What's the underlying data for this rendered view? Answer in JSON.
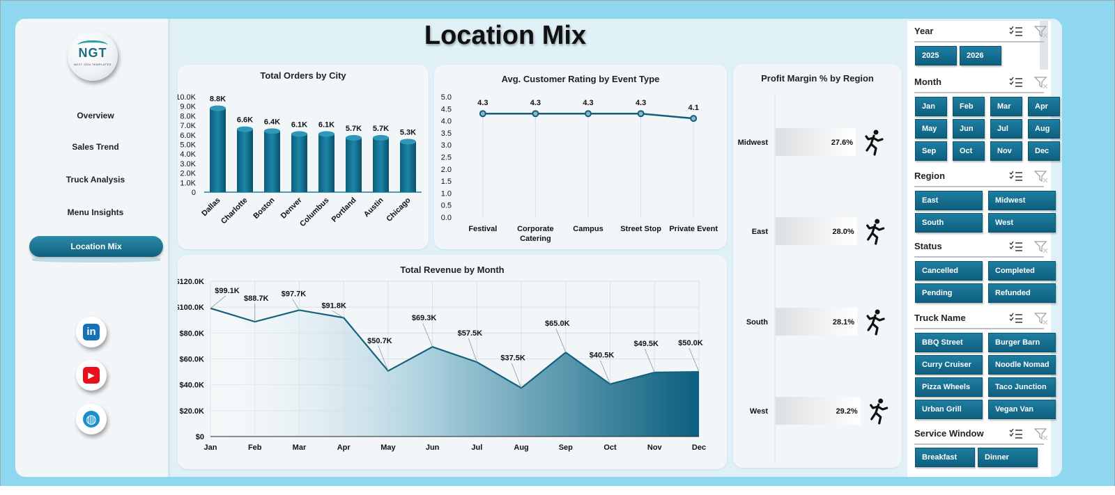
{
  "page_title": "Location Mix",
  "logo": {
    "text": "NGT",
    "subtitle": "NEXT GEN TEMPLATES"
  },
  "nav": {
    "items": [
      "Overview",
      "Sales Trend",
      "Truck Analysis",
      "Menu Insights"
    ],
    "active": "Location Mix"
  },
  "social": {
    "linkedin": "in",
    "youtube": "▶",
    "web": "◍"
  },
  "colors": {
    "accent": "#0f5f7d",
    "accent_light": "#2d8ba8",
    "background": "#8fd6ef",
    "panel": "#f2f6f8"
  },
  "charts": {
    "orders_title": "Total Orders by City",
    "rating_title": "Avg. Customer Rating by Event Type",
    "margin_title": "Profit Margin % by Region",
    "revenue_title": "Total Revenue  by Month"
  },
  "chart_data": [
    {
      "type": "bar",
      "title": "Total Orders by City",
      "categories": [
        "Dallas",
        "Charlotte",
        "Boston",
        "Denver",
        "Columbus",
        "Portland",
        "Austin",
        "Chicago"
      ],
      "values": [
        8800,
        6600,
        6400,
        6100,
        6100,
        5700,
        5700,
        5300
      ],
      "data_labels": [
        "8.8K",
        "6.6K",
        "6.4K",
        "6.1K",
        "6.1K",
        "5.7K",
        "5.7K",
        "5.3K"
      ],
      "y_ticks": [
        "0",
        "1.0K",
        "2.0K",
        "3.0K",
        "4.0K",
        "5.0K",
        "6.0K",
        "7.0K",
        "8.0K",
        "9.0K",
        "10.0K"
      ],
      "ylim": [
        0,
        10000
      ]
    },
    {
      "type": "line",
      "title": "Avg. Customer Rating by Event Type",
      "categories": [
        "Festival",
        "Corporate Catering",
        "Campus",
        "Street Stop",
        "Private Event"
      ],
      "values": [
        4.3,
        4.3,
        4.3,
        4.3,
        4.1
      ],
      "data_labels": [
        "4.3",
        "4.3",
        "4.3",
        "4.3",
        "4.1"
      ],
      "y_ticks": [
        "0.0",
        "0.5",
        "1.0",
        "1.5",
        "2.0",
        "2.5",
        "3.0",
        "3.5",
        "4.0",
        "4.5",
        "5.0"
      ],
      "ylim": [
        0,
        5
      ]
    },
    {
      "type": "bar",
      "title": "Profit Margin % by Region",
      "categories": [
        "Midwest",
        "East",
        "South",
        "West"
      ],
      "values": [
        27.6,
        28.0,
        28.1,
        29.2
      ],
      "data_labels": [
        "27.6%",
        "28.0%",
        "28.1%",
        "29.2%"
      ]
    },
    {
      "type": "area",
      "title": "Total Revenue  by Month",
      "categories": [
        "Jan",
        "Feb",
        "Mar",
        "Apr",
        "May",
        "Jun",
        "Jul",
        "Aug",
        "Sep",
        "Oct",
        "Nov",
        "Dec"
      ],
      "values": [
        99100,
        88700,
        97700,
        91800,
        50700,
        69300,
        57500,
        37500,
        65000,
        40500,
        49500,
        50000
      ],
      "data_labels": [
        "$99.1K",
        "$88.7K",
        "$97.7K",
        "$91.8K",
        "$50.7K",
        "$69.3K",
        "$57.5K",
        "$37.5K",
        "$65.0K",
        "$40.5K",
        "$49.5K",
        "$50.0K"
      ],
      "y_ticks": [
        "$0",
        "$20.0K",
        "$40.0K",
        "$60.0K",
        "$80.0K",
        "$100.0K",
        "$120.0K"
      ],
      "ylim": [
        0,
        120000
      ],
      "grid": true
    }
  ],
  "slicers": [
    {
      "label": "Year",
      "options": [
        "2025",
        "2026"
      ]
    },
    {
      "label": "Month",
      "options": [
        "Jan",
        "Feb",
        "Mar",
        "Apr",
        "May",
        "Jun",
        "Jul",
        "Aug",
        "Sep",
        "Oct",
        "Nov",
        "Dec"
      ]
    },
    {
      "label": "Region",
      "options": [
        "East",
        "Midwest",
        "South",
        "West"
      ]
    },
    {
      "label": "Status",
      "options": [
        "Cancelled",
        "Completed",
        "Pending",
        "Refunded"
      ]
    },
    {
      "label": "Truck Name",
      "options": [
        "BBQ Street",
        "Burger Barn",
        "Curry Cruiser",
        "Noodle Nomad",
        "Pizza Wheels",
        "Taco Junction",
        "Urban Grill",
        "Vegan Van"
      ]
    },
    {
      "label": "Service Window",
      "options": [
        "Breakfast",
        "Dinner"
      ]
    }
  ]
}
